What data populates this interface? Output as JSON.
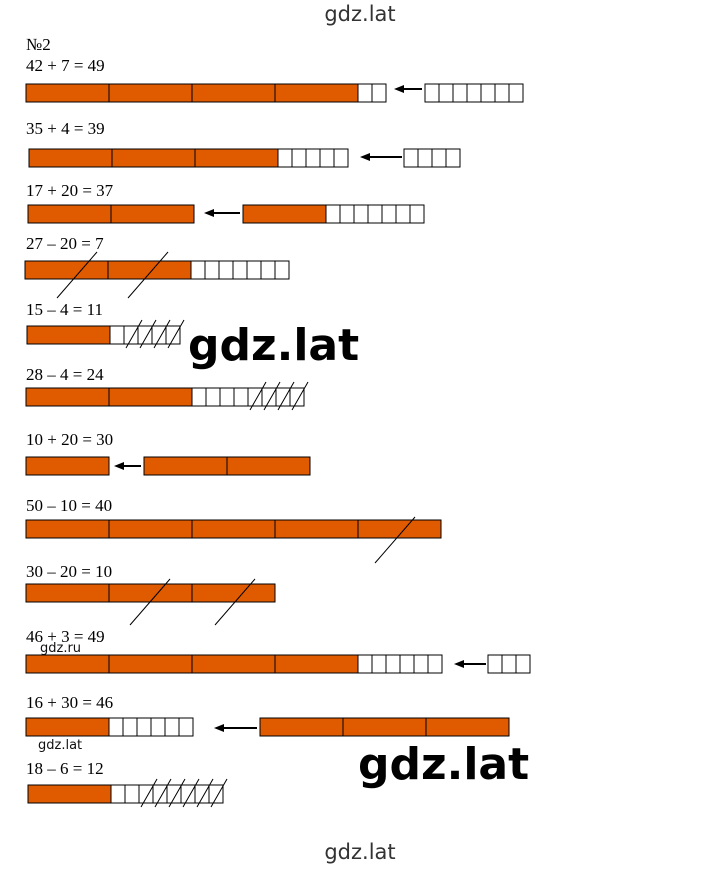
{
  "watermarks": {
    "top": "gdz.lat",
    "bottom": "gdz.lat",
    "middle": "gdz.lat",
    "right": "gdz.lat",
    "small_1": "gdz.ru",
    "small_2": "gdz.lat"
  },
  "task_number": "№2",
  "colors": {
    "tens": "#e05a00",
    "outline": "#000000"
  },
  "problems": [
    {
      "equation": "42 + 7 = 49"
    },
    {
      "equation": "35 + 4 = 39"
    },
    {
      "equation": "17 + 20 = 37"
    },
    {
      "equation": "27 – 20 = 7"
    },
    {
      "equation": "15 – 4 = 11"
    },
    {
      "equation": "28 – 4 = 24"
    },
    {
      "equation": "10 + 20 = 30"
    },
    {
      "equation": "50 – 10 = 40"
    },
    {
      "equation": "30 – 20 = 10"
    },
    {
      "equation": "46 + 3 = 49"
    },
    {
      "equation": "16 + 30 = 46"
    },
    {
      "equation": "18 – 6 = 12"
    }
  ]
}
